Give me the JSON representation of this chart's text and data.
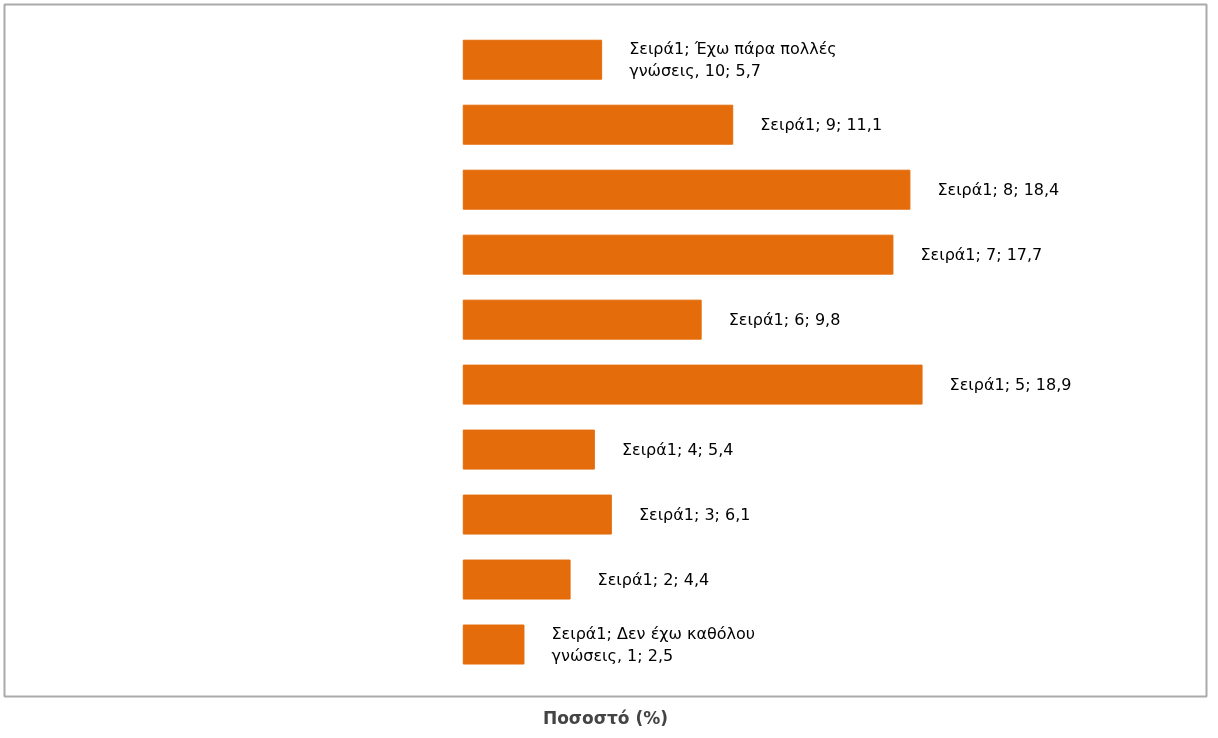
{
  "chart_data": {
    "type": "bar",
    "orientation": "horizontal",
    "xlabel": "Ποσοστό (%)",
    "categories": [
      null,
      null,
      null,
      null,
      null,
      null,
      null,
      null,
      null,
      null
    ],
    "series": [
      {
        "color": "#e46c0a",
        "values": [
          5.7,
          11.1,
          18.4,
          17.7,
          9.8,
          18.9,
          5.4,
          6.1,
          4.4,
          2.5
        ],
        "value_labels": [
          "Σειρά1; Έχω πάρα πολλές γνώσεις, 10; 5,7",
          "Σειρά1; 9; 11,1",
          "Σειρά1; 8; 18,4",
          "Σειρά1; 7; 17,7",
          "Σειρά1; 6; 9,8",
          "Σειρά1; 5; 18,9",
          "Σειρά1; 4; 5,4",
          "Σειρά1; 3; 6,1",
          "Σειρά1; 2; 4,4",
          "Σειρά1; Δεν έχω καθόλου γνώσεις, 1; 2,5"
        ]
      }
    ],
    "tick_labels": false,
    "grid": false
  }
}
